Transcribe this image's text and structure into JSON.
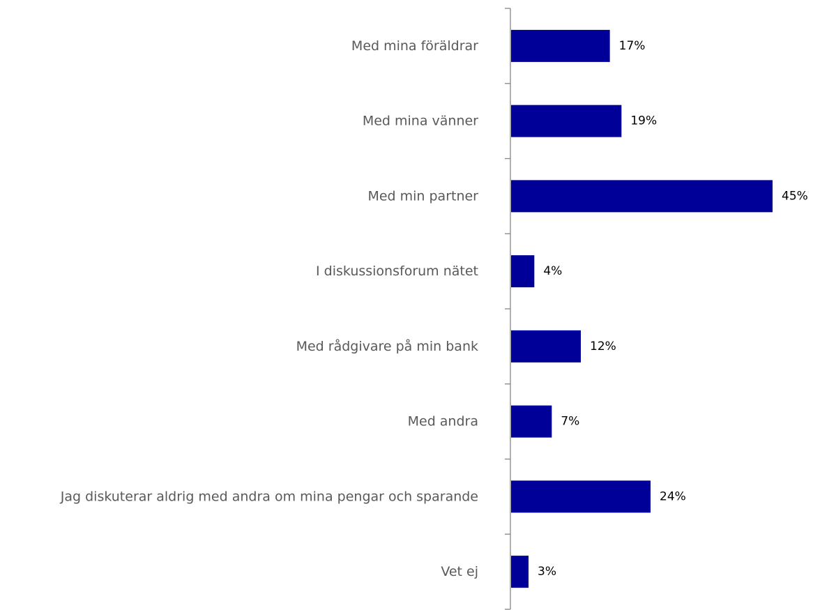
{
  "chart_data": {
    "type": "bar",
    "orientation": "horizontal",
    "categories": [
      "Med mina föräldrar",
      "Med mina vänner",
      "Med min partner",
      "I diskussionsforum nätet",
      "Med rådgivare på min bank",
      "Med andra",
      "Jag diskuterar aldrig med andra om mina pengar och sparande",
      "Vet ej"
    ],
    "values": [
      17,
      19,
      45,
      4,
      12,
      7,
      24,
      3
    ],
    "value_labels": [
      "17%",
      "19%",
      "45%",
      "4%",
      "12%",
      "7%",
      "24%",
      "3%"
    ],
    "unit": "%",
    "xlim": [
      0,
      45
    ],
    "grid": false,
    "legend": "none",
    "bar_color": "#000099",
    "axis_color": "#868686",
    "label_color": "#595959"
  }
}
